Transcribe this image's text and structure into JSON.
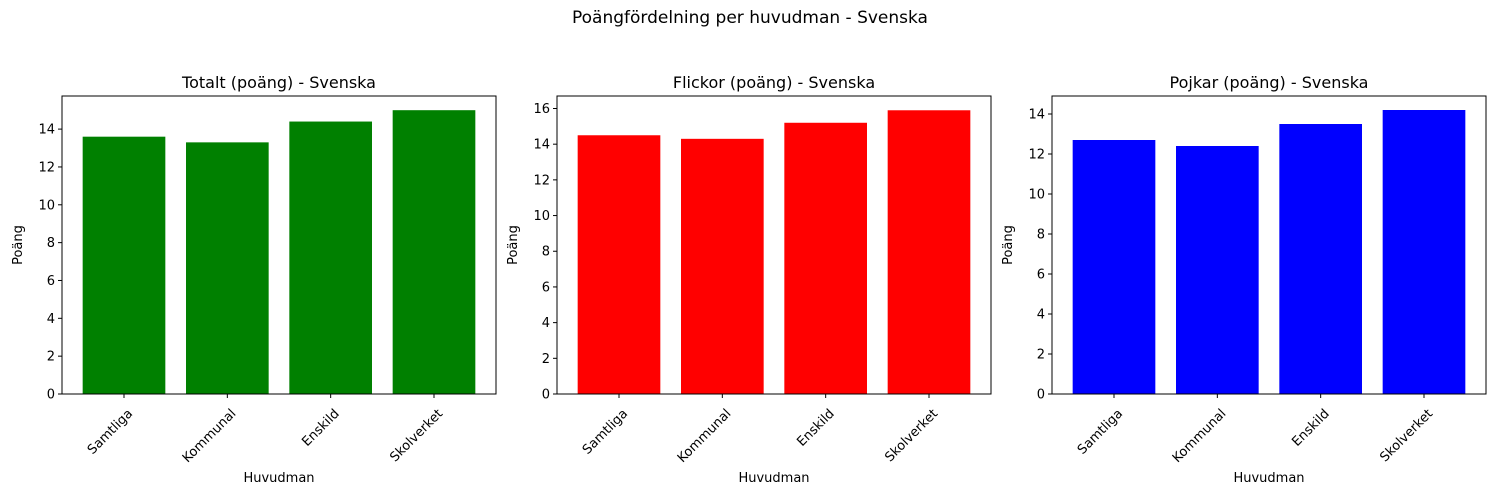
{
  "figure": {
    "suptitle": "Poängfördelning per huvudman - Svenska"
  },
  "chart_data": [
    {
      "type": "bar",
      "title": "Totalt (poäng) - Svenska",
      "xlabel": "Huvudman",
      "ylabel": "Poäng",
      "categories": [
        "Samtliga",
        "Kommunal",
        "Enskild",
        "Skolverket"
      ],
      "values": [
        13.6,
        13.3,
        14.4,
        15.0
      ],
      "color": "#008000",
      "ylim": [
        0,
        15.75
      ],
      "yticks": [
        0,
        2,
        4,
        6,
        8,
        10,
        12,
        14
      ],
      "grid": false
    },
    {
      "type": "bar",
      "title": "Flickor (poäng) - Svenska",
      "xlabel": "Huvudman",
      "ylabel": "Poäng",
      "categories": [
        "Samtliga",
        "Kommunal",
        "Enskild",
        "Skolverket"
      ],
      "values": [
        14.5,
        14.3,
        15.2,
        15.9
      ],
      "color": "#ff0000",
      "ylim": [
        0,
        16.7
      ],
      "yticks": [
        0,
        2,
        4,
        6,
        8,
        10,
        12,
        14,
        16
      ],
      "grid": false
    },
    {
      "type": "bar",
      "title": "Pojkar (poäng) - Svenska",
      "xlabel": "Huvudman",
      "ylabel": "Poäng",
      "categories": [
        "Samtliga",
        "Kommunal",
        "Enskild",
        "Skolverket"
      ],
      "values": [
        12.7,
        12.4,
        13.5,
        14.2
      ],
      "color": "#0000ff",
      "ylim": [
        0,
        14.9
      ],
      "yticks": [
        0,
        2,
        4,
        6,
        8,
        10,
        12,
        14
      ],
      "grid": false
    }
  ]
}
